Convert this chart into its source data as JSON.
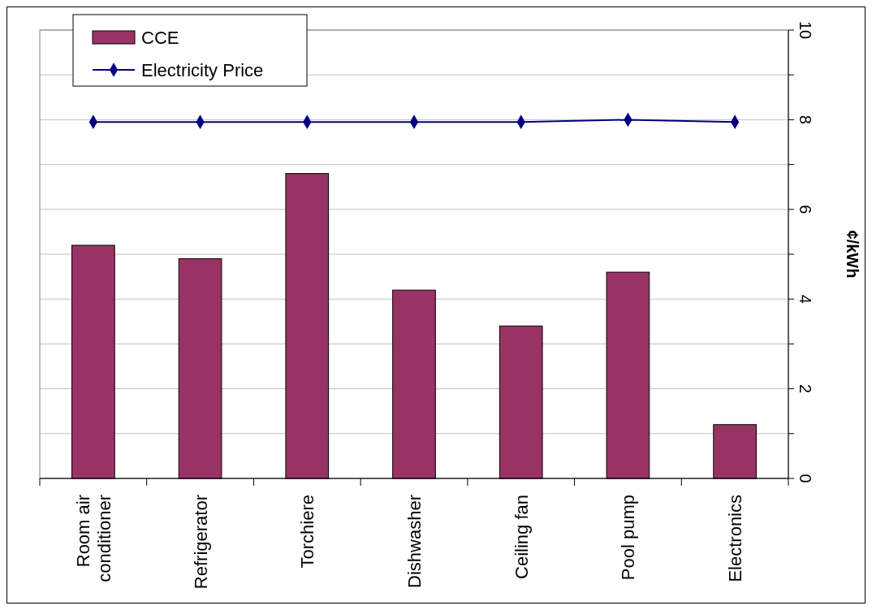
{
  "chart_data": {
    "type": "bar",
    "ylabel": "¢/kWh",
    "categories": [
      "Room air conditioner",
      "Refrigerator",
      "Torchiere",
      "Dishwasher",
      "Ceiling fan",
      "Pool pump",
      "Electronics"
    ],
    "series": [
      {
        "name": "CCE",
        "color": "#993366",
        "values": [
          5.2,
          4.9,
          6.8,
          4.2,
          3.4,
          4.6,
          1.2
        ]
      },
      {
        "name": "Electricity Price",
        "type": "line",
        "color": "#000080",
        "values": [
          7.95,
          7.95,
          7.95,
          7.95,
          7.95,
          8.0,
          7.95
        ]
      }
    ],
    "ylim": [
      0,
      10
    ],
    "yticks": [
      0,
      {
        "value": 1,
        "label": null
      },
      2,
      {
        "value": 3,
        "label": null
      },
      4,
      {
        "value": 5,
        "label": null
      },
      6,
      {
        "value": 7,
        "label": null
      },
      8,
      {
        "value": 9,
        "label": null
      },
      10
    ],
    "grid": "y",
    "legend": "top left",
    "marker": "diamond",
    "line_style": "solid"
  }
}
